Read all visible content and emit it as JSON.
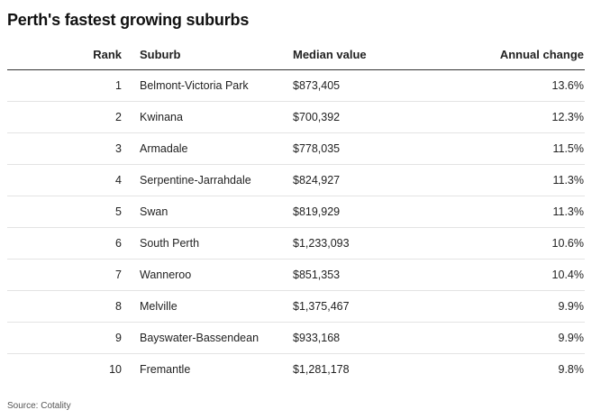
{
  "title": "Perth's fastest growing suburbs",
  "columns": {
    "rank": "Rank",
    "suburb": "Suburb",
    "value": "Median value",
    "change": "Annual change"
  },
  "rows": [
    {
      "rank": "1",
      "suburb": "Belmont-Victoria Park",
      "value": "$873,405",
      "change": "13.6%"
    },
    {
      "rank": "2",
      "suburb": "Kwinana",
      "value": "$700,392",
      "change": "12.3%"
    },
    {
      "rank": "3",
      "suburb": "Armadale",
      "value": "$778,035",
      "change": "11.5%"
    },
    {
      "rank": "4",
      "suburb": "Serpentine-Jarrahdale",
      "value": "$824,927",
      "change": "11.3%"
    },
    {
      "rank": "5",
      "suburb": "Swan",
      "value": "$819,929",
      "change": "11.3%"
    },
    {
      "rank": "6",
      "suburb": "South Perth",
      "value": "$1,233,093",
      "change": "10.6%"
    },
    {
      "rank": "7",
      "suburb": "Wanneroo",
      "value": "$851,353",
      "change": "10.4%"
    },
    {
      "rank": "8",
      "suburb": "Melville",
      "value": "$1,375,467",
      "change": "9.9%"
    },
    {
      "rank": "9",
      "suburb": "Bayswater-Bassendean",
      "value": "$933,168",
      "change": "9.9%"
    },
    {
      "rank": "10",
      "suburb": "Fremantle",
      "value": "$1,281,178",
      "change": "9.8%"
    }
  ],
  "source": "Source: Cotality"
}
